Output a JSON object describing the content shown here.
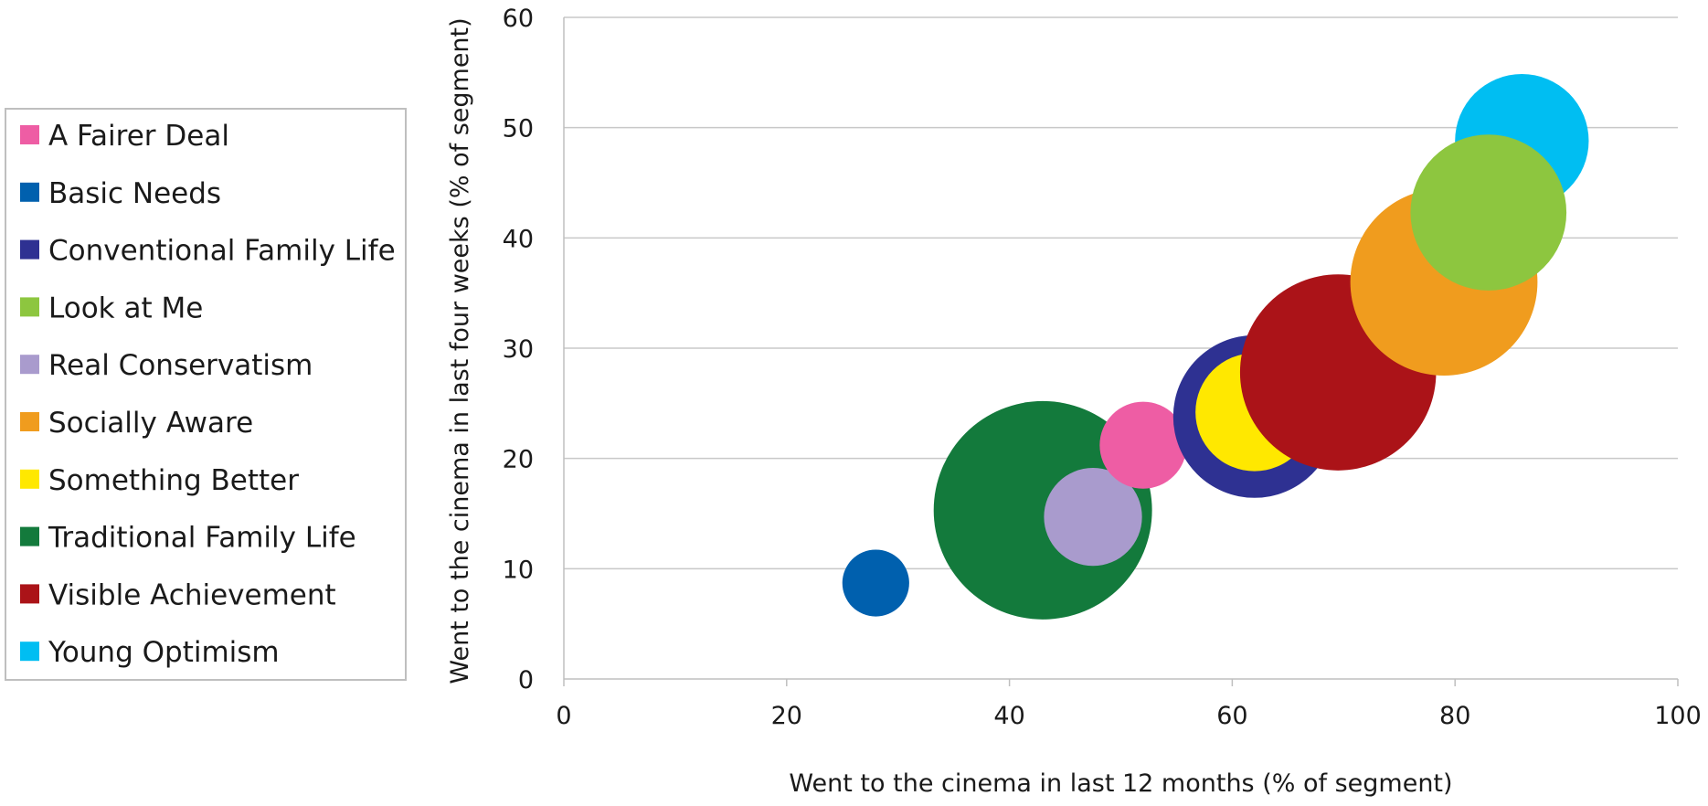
{
  "chart_data": {
    "type": "scatter",
    "bubble": true,
    "title": "",
    "xlabel": "Went to the cinema in last 12 months (% of segment)",
    "ylabel": "Went to the cinema in last four weeks (% of segment)",
    "xlim": [
      0,
      100
    ],
    "ylim": [
      0,
      60
    ],
    "xticks": [
      "0",
      "20",
      "40",
      "60",
      "80",
      "100"
    ],
    "yticks": [
      "0",
      "10",
      "20",
      "30",
      "40",
      "50",
      "60"
    ],
    "grid": "horizontal",
    "legend_position": "left",
    "series": [
      {
        "name": "A Fairer Deal",
        "x": 52,
        "y": 21.2,
        "size": 3.9,
        "color": "#ee5da4"
      },
      {
        "name": "Basic Needs",
        "x": 28,
        "y": 8.7,
        "size": 3.0,
        "color": "#0060ae"
      },
      {
        "name": "Conventional Family Life",
        "x": 62,
        "y": 23.8,
        "size": 7.3,
        "color": "#2e3192"
      },
      {
        "name": "Look at Me",
        "x": 83,
        "y": 42.3,
        "size": 7.0,
        "color": "#8dc63f"
      },
      {
        "name": "Real Conservatism",
        "x": 47.5,
        "y": 14.7,
        "size": 4.4,
        "color": "#a99bcd"
      },
      {
        "name": "Socially Aware",
        "x": 79,
        "y": 36,
        "size": 8.4,
        "color": "#f09c1e"
      },
      {
        "name": "Something Better",
        "x": 62,
        "y": 24.2,
        "size": 5.3,
        "color": "#ffe800"
      },
      {
        "name": "Traditional Family Life",
        "x": 43,
        "y": 15.3,
        "size": 9.8,
        "color": "#137a3c"
      },
      {
        "name": "Visible Achievement",
        "x": 69.5,
        "y": 27.8,
        "size": 8.8,
        "color": "#ab1318"
      },
      {
        "name": "Young Optimism",
        "x": 86,
        "y": 48.8,
        "size": 6.0,
        "color": "#00bef2"
      }
    ],
    "draw_order": [
      7,
      4,
      1,
      0,
      2,
      6,
      8,
      5,
      9,
      3
    ]
  }
}
